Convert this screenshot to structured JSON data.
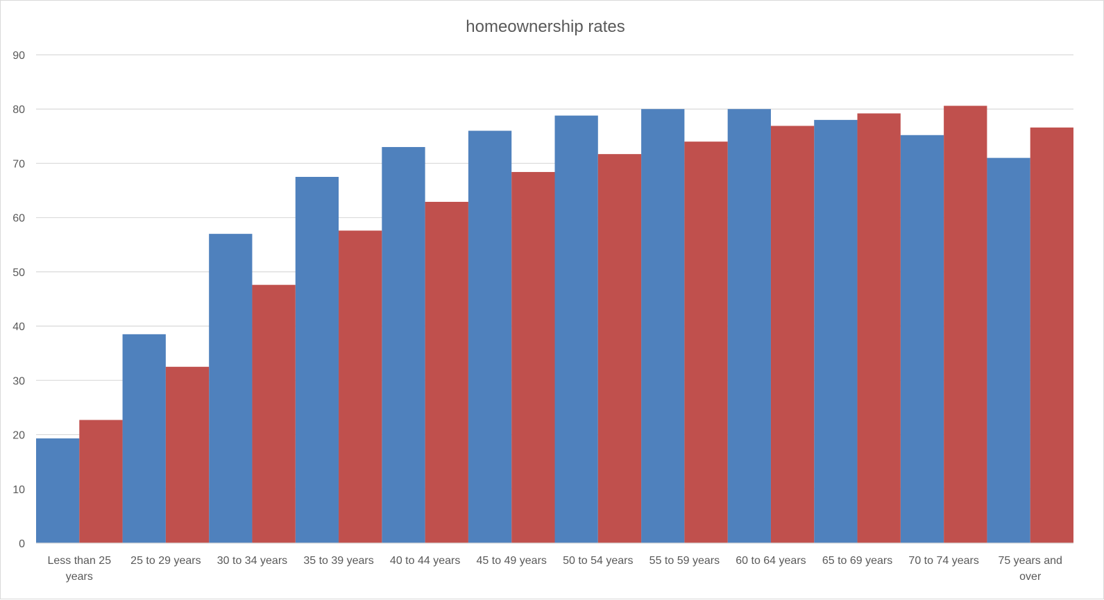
{
  "chart_data": {
    "type": "bar",
    "title": "homeownership rates",
    "xlabel": "",
    "ylabel": "",
    "ylim": [
      0,
      90
    ],
    "yticks": [
      0,
      10,
      20,
      30,
      40,
      50,
      60,
      70,
      80,
      90
    ],
    "grid": true,
    "legend": "none",
    "categories": [
      "Less than 25 years",
      "25 to 29 years",
      "30 to 34 years",
      "35 to 39 years",
      "40 to 44 years",
      "45 to 49 years",
      "50 to 54 years",
      "55 to 59 years",
      "60 to 64 years",
      "65 to 69 years",
      "70 to 74 years",
      "75 years and over"
    ],
    "category_label_lines": [
      [
        "Less than 25",
        "years"
      ],
      [
        "25 to 29 years"
      ],
      [
        "30 to 34 years"
      ],
      [
        "35 to 39 years"
      ],
      [
        "40 to 44 years"
      ],
      [
        "45 to 49 years"
      ],
      [
        "50 to 54 years"
      ],
      [
        "55 to 59 years"
      ],
      [
        "60 to 64 years"
      ],
      [
        "65 to 69 years"
      ],
      [
        "70 to 74 years"
      ],
      [
        "75 years and",
        "over"
      ]
    ],
    "series": [
      {
        "color": "#4f81bd",
        "values": [
          19.3,
          38.5,
          57.0,
          67.5,
          73.0,
          76.0,
          78.8,
          80.0,
          80.0,
          78.0,
          75.2,
          71.0
        ]
      },
      {
        "color": "#c0504d",
        "values": [
          22.7,
          32.5,
          47.6,
          57.6,
          62.9,
          68.4,
          71.7,
          74.0,
          76.9,
          79.2,
          80.6,
          76.6
        ]
      }
    ]
  }
}
